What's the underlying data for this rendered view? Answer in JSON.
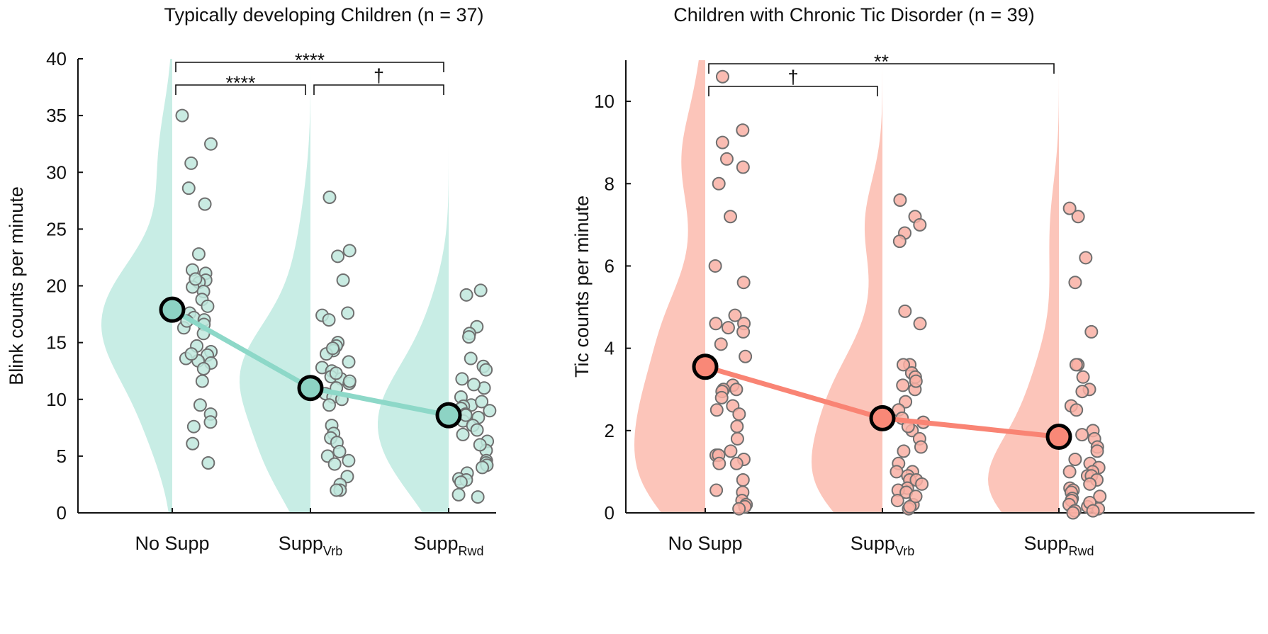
{
  "chart_data": [
    {
      "type": "violin-scatter",
      "title": "Typically developing Children (n = 37)",
      "ylabel": "Blink counts per minute",
      "ylim": [
        0,
        40
      ],
      "yticks": [
        0,
        5,
        10,
        15,
        20,
        25,
        30,
        35,
        40
      ],
      "categories": [
        {
          "main": "No Supp",
          "sub": ""
        },
        {
          "main": "Supp",
          "sub": "Vrb"
        },
        {
          "main": "Supp",
          "sub": "Rwd"
        }
      ],
      "means": [
        17.9,
        11.0,
        8.6
      ],
      "colors": {
        "violin": "#c8ede5",
        "point": "#bfe7dd",
        "line": "#8dd8c8",
        "mean": "#8dd3c4"
      },
      "points": [
        [
          35,
          32.5,
          30.8,
          28.6,
          27.2,
          22.8,
          21.4,
          21.1,
          20.5,
          20.3,
          19.5,
          18.8,
          18.2,
          17.6,
          17.2,
          17.0,
          16.6,
          16.3,
          15.8,
          14.7,
          14.2,
          13.9,
          13.6,
          13.4,
          13.2,
          12.7,
          11.6,
          9.5,
          8.7,
          8.0,
          7.6,
          6.1,
          4.4,
          19.9,
          16.9,
          14.0,
          20.6
        ],
        [
          27.8,
          23.1,
          22.6,
          20.5,
          17.6,
          17.4,
          17.0,
          15.0,
          14.7,
          14.3,
          14.0,
          13.3,
          12.8,
          12.5,
          12.0,
          11.8,
          11.4,
          11.0,
          10.5,
          10.2,
          9.5,
          7.7,
          7.0,
          6.6,
          6.2,
          5.4,
          5.0,
          4.6,
          4.3,
          3.2,
          2.5,
          2.0,
          2.0,
          12.3,
          10.0,
          11.6,
          14.5
        ],
        [
          19.6,
          19.2,
          16.4,
          15.8,
          15.5,
          13.6,
          12.9,
          12.6,
          11.8,
          11.0,
          10.2,
          9.5,
          9.4,
          9.2,
          9.0,
          8.7,
          8.4,
          8.1,
          7.7,
          7.3,
          6.9,
          6.3,
          5.5,
          4.6,
          4.4,
          4.2,
          4.0,
          3.5,
          3.0,
          2.9,
          2.7,
          1.6,
          1.4,
          8.6,
          9.8,
          11.3,
          6.0
        ]
      ],
      "significance": [
        {
          "from": 0,
          "to": 2,
          "label": "****",
          "level": 2
        },
        {
          "from": 0,
          "to": 1,
          "label": "****",
          "level": 1
        },
        {
          "from": 1,
          "to": 2,
          "label": "†",
          "level": 1
        }
      ]
    },
    {
      "type": "violin-scatter",
      "title": "Children with Chronic Tic Disorder (n = 39)",
      "ylabel": "Tic counts per minute",
      "ylim": [
        0,
        11
      ],
      "yticks": [
        0,
        2,
        4,
        6,
        8,
        10
      ],
      "categories": [
        {
          "main": "No Supp",
          "sub": ""
        },
        {
          "main": "Supp",
          "sub": "Vrb"
        },
        {
          "main": "Supp",
          "sub": "Rwd"
        }
      ],
      "means": [
        3.55,
        2.3,
        1.85
      ],
      "colors": {
        "violin": "#fcc5ba",
        "point": "#f9b0a4",
        "line": "#f98474",
        "mean": "#f98877"
      },
      "points": [
        [
          10.6,
          9.3,
          9.0,
          8.6,
          8.4,
          8.0,
          7.2,
          6.0,
          5.6,
          4.8,
          4.6,
          4.6,
          4.4,
          4.1,
          3.8,
          3.1,
          3.0,
          3.0,
          2.95,
          2.8,
          2.6,
          2.5,
          2.4,
          2.1,
          1.8,
          1.5,
          1.4,
          1.4,
          1.3,
          1.2,
          1.2,
          0.8,
          0.55,
          0.5,
          0.3,
          0.2,
          0.15,
          0.1,
          4.5
        ],
        [
          7.6,
          7.2,
          7.0,
          6.8,
          6.6,
          4.9,
          4.6,
          3.6,
          3.6,
          3.4,
          3.3,
          3.1,
          3.0,
          2.7,
          2.5,
          2.3,
          2.2,
          2.2,
          2.0,
          1.8,
          1.6,
          1.2,
          1.0,
          1.0,
          0.9,
          0.8,
          0.8,
          0.7,
          0.6,
          0.55,
          0.5,
          0.3,
          0.2,
          0.1,
          0.15,
          2.1,
          3.2,
          1.5,
          0.4
        ],
        [
          7.4,
          7.2,
          6.2,
          5.6,
          4.4,
          3.6,
          3.6,
          3.0,
          2.95,
          2.6,
          2.0,
          1.8,
          1.6,
          1.5,
          1.2,
          1.1,
          1.0,
          1.0,
          0.9,
          0.9,
          0.8,
          0.6,
          0.55,
          0.5,
          0.35,
          0.3,
          0.2,
          0.15,
          0.1,
          0.05,
          0.0,
          1.3,
          0.7,
          2.5,
          3.3,
          0.4,
          1.9,
          0.25,
          0.05
        ]
      ],
      "significance": [
        {
          "from": 0,
          "to": 2,
          "label": "**",
          "level": 2
        },
        {
          "from": 0,
          "to": 1,
          "label": "†",
          "level": 1
        }
      ]
    }
  ]
}
